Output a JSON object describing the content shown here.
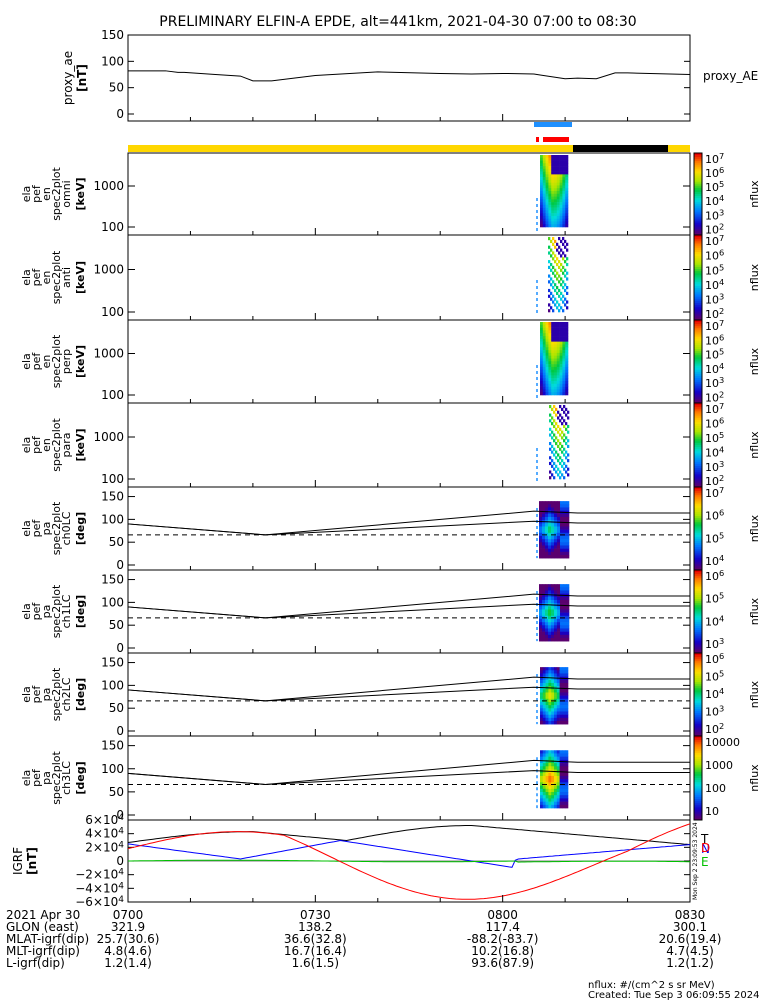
{
  "title": "PRELIMINARY ELFIN-A EPDE, alt=441km, 2021-04-30 07:00 to 08:30",
  "proxy_ae": {
    "ylabel": "proxy_ae",
    "unit": "[nT]",
    "legend": "proxy_AE",
    "yticks": [
      "150",
      "100",
      "50",
      "0"
    ],
    "ylim": [
      0,
      160
    ],
    "x": [
      0,
      1.5,
      6,
      8,
      9,
      14,
      18,
      20,
      23,
      30,
      40,
      50,
      55,
      60,
      65,
      66,
      70,
      72,
      75,
      78,
      80,
      90
    ],
    "y": [
      82,
      82,
      82,
      79,
      79,
      75,
      72,
      63,
      63,
      73,
      80,
      77,
      76,
      77,
      76,
      74,
      67,
      68,
      67,
      78,
      78,
      75
    ]
  },
  "spectrograms": [
    {
      "l1": "ela",
      "l2": "pef",
      "l3": "en",
      "l4": "spec2plot",
      "l5": "omni",
      "unit": "[keV]",
      "yticks": [
        "1000",
        "100"
      ]
    },
    {
      "l1": "ela",
      "l2": "pef",
      "l3": "en",
      "l4": "spec2plot",
      "l5": "anti",
      "unit": "[keV]",
      "yticks": [
        "1000",
        "100"
      ]
    },
    {
      "l1": "ela",
      "l2": "pef",
      "l3": "en",
      "l4": "spec2plot",
      "l5": "perp",
      "unit": "[keV]",
      "yticks": [
        "1000",
        "100"
      ]
    },
    {
      "l1": "ela",
      "l2": "pef",
      "l3": "en",
      "l4": "spec2plot",
      "l5": "para",
      "unit": "[keV]",
      "yticks": [
        "1000",
        "100"
      ]
    }
  ],
  "pitch_panels": [
    {
      "l1": "ela",
      "l2": "pef",
      "l3": "pa",
      "l4": "spec2plot",
      "l5": "ch0LC",
      "unit": "[deg]",
      "yticks": [
        "150",
        "100",
        "50",
        "0"
      ]
    },
    {
      "l1": "ela",
      "l2": "pef",
      "l3": "pa",
      "l4": "spec2plot",
      "l5": "ch1LC",
      "unit": "[deg]",
      "yticks": [
        "150",
        "100",
        "50",
        "0"
      ]
    },
    {
      "l1": "ela",
      "l2": "pef",
      "l3": "pa",
      "l4": "spec2plot",
      "l5": "ch2LC",
      "unit": "[deg]",
      "yticks": [
        "150",
        "100",
        "50",
        "0"
      ]
    },
    {
      "l1": "ela",
      "l2": "pef",
      "l3": "pa",
      "l4": "spec2plot",
      "l5": "ch3LC",
      "unit": "[deg]",
      "yticks": [
        "150",
        "100",
        "50",
        "0"
      ]
    }
  ],
  "colorbars": [
    {
      "label": "nflux",
      "ticks": [
        "10^7",
        "10^6",
        "10^5",
        "10^4",
        "10^3",
        "10^2"
      ]
    },
    {
      "label": "nflux",
      "ticks": [
        "10^7",
        "10^6",
        "10^5",
        "10^4",
        "10^3",
        "10^2"
      ]
    },
    {
      "label": "nflux",
      "ticks": [
        "10^7",
        "10^6",
        "10^5",
        "10^4",
        "10^3",
        "10^2"
      ]
    },
    {
      "label": "nflux",
      "ticks": [
        "10^7",
        "10^6",
        "10^5",
        "10^4",
        "10^3",
        "10^2"
      ]
    },
    {
      "label": "nflux",
      "ticks": [
        "10^7",
        "10^6",
        "10^5",
        "10^4"
      ]
    },
    {
      "label": "nflux",
      "ticks": [
        "10^6",
        "10^5",
        "10^4",
        "10^3"
      ]
    },
    {
      "label": "nflux",
      "ticks": [
        "10^6",
        "10^5",
        "10^4",
        "10^3",
        "10^2"
      ]
    },
    {
      "label": "nflux",
      "ticks": [
        "10000",
        "1000",
        "100",
        "10"
      ]
    }
  ],
  "igrf": {
    "ylabel": "IGRF",
    "unit": "[nT]",
    "yticks": [
      "6×10^4",
      "4×10^4",
      "2×10^4",
      "0",
      "−2×10^4",
      "−4×10^4",
      "−6×10^4"
    ],
    "legend": [
      {
        "name": "N",
        "color": "#0000ff"
      },
      {
        "name": "E",
        "color": "#00c000"
      },
      {
        "name": "D",
        "color": "#ff0000"
      },
      {
        "name": "T",
        "color": "#000000"
      }
    ],
    "side_stamp": "Mon Sep 2 23:09:53 2024"
  },
  "time_axis": {
    "ticks": [
      "0700",
      "0730",
      "0800",
      "0830"
    ],
    "rows": [
      {
        "label": "2021 Apr 30",
        "values": [
          "0700",
          "0730",
          "0800",
          "0830"
        ]
      },
      {
        "label": "GLON (east)",
        "values": [
          "321.9",
          "138.2",
          "117.4",
          "300.1"
        ]
      },
      {
        "label": "MLAT-igrf(dip)",
        "values": [
          "25.7(30.6)",
          "36.6(32.8)",
          "-88.2(-83.7)",
          "20.6(19.4)"
        ]
      },
      {
        "label": "MLT-igrf(dip)",
        "values": [
          "4.8(4.6)",
          "16.7(16.4)",
          "10.2(16.8)",
          "4.7(4.5)"
        ]
      },
      {
        "label": "L-igrf(dip)",
        "values": [
          "1.2(1.4)",
          "1.6(1.5)",
          "93.6(87.9)",
          "1.2(1.2)"
        ]
      }
    ]
  },
  "footer": {
    "units": "nflux: #/(cm^2 s sr MeV)",
    "created": "Created: Tue Sep  3 06:09:55 2024"
  },
  "colors": {
    "bar_yellow": "#ffd700",
    "bar_black": "#000000",
    "bar_blue": "#1e90ff",
    "bar_red": "#ff0000"
  }
}
